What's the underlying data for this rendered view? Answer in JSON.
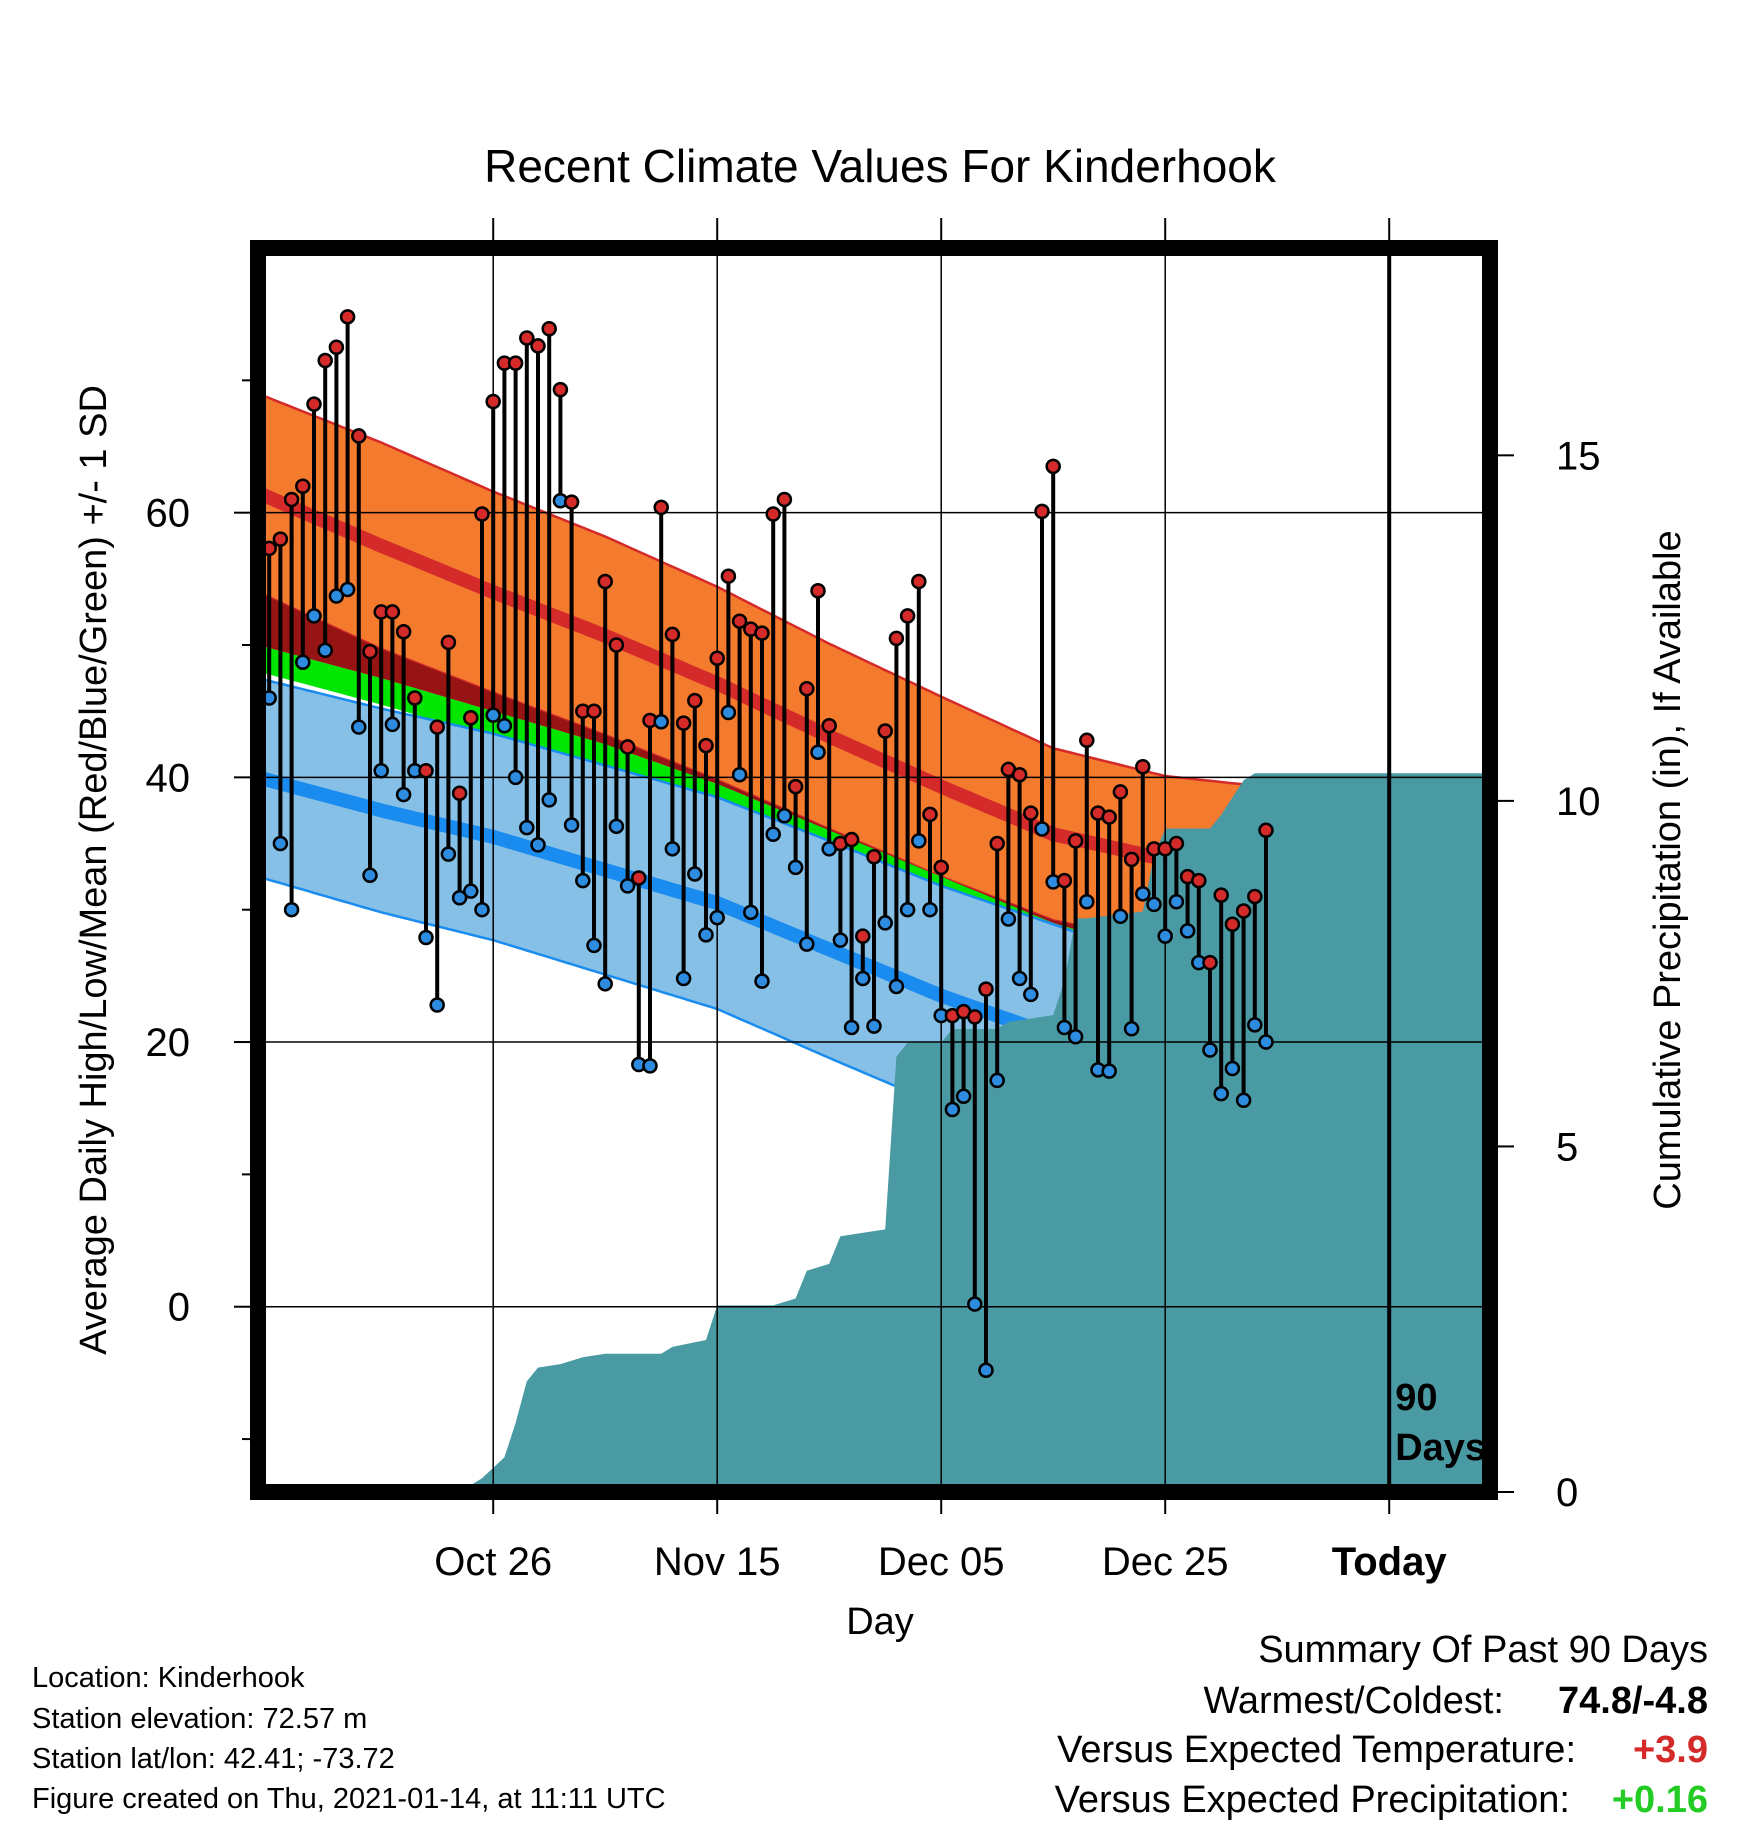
{
  "chart_data": {
    "type": "line",
    "title": "Recent Climate Values For Kinderhook",
    "xlabel": "Day",
    "ylabel_left": "Average Daily High/Low/Mean (Red/Blue/Green) +/- 1 SD",
    "ylabel_right": "Cumulative Precipitation (in), If Available",
    "x_range_days": [
      -101,
      9
    ],
    "y_range": [
      -14,
      80
    ],
    "y_ticks": [
      0,
      20,
      40,
      60
    ],
    "y_ticks_minor": [
      -10,
      10,
      30,
      50,
      70
    ],
    "precip_range": [
      0,
      18
    ],
    "precip_ticks": [
      0,
      5,
      10,
      15
    ],
    "x_ticks": [
      {
        "day": -80,
        "label": "Oct 26"
      },
      {
        "day": -60,
        "label": "Nov 15"
      },
      {
        "day": -40,
        "label": "Dec 05"
      },
      {
        "day": -20,
        "label": "Dec 25"
      },
      {
        "day": 0,
        "label": "Today"
      }
    ],
    "today_marker_label": [
      "90",
      "Days"
    ],
    "grid": true,
    "colors": {
      "high_band": "#f47a2e",
      "high_mean_line": "#d42a2a",
      "low_band": "#86c0e6",
      "low_mean_line": "#1a8cf0",
      "mean_band": "#00e600",
      "overlap_band": "#961414",
      "precip_fill": "#4a9aa4",
      "high_marker": "#d42a2a",
      "low_marker": "#2d8ce0"
    },
    "normals": {
      "days": [
        -101,
        -90,
        -80,
        -70,
        -60,
        -50,
        -40,
        -30,
        -20,
        -10,
        0,
        9
      ],
      "high_mean": [
        61.5,
        57.5,
        54.0,
        50.7,
        47.1,
        43.1,
        39.3,
        35.7,
        33.8,
        32.8,
        32.5,
        33.3
      ],
      "high_sd": [
        7.5,
        7.8,
        7.6,
        7.5,
        7.3,
        7.0,
        6.8,
        6.5,
        6.3,
        6.4,
        6.4,
        6.5
      ],
      "low_mean": [
        40.0,
        37.5,
        35.5,
        33.0,
        30.5,
        27.0,
        23.5,
        20.5,
        17.5,
        15.5,
        14.5,
        14.5
      ],
      "low_sd": [
        7.5,
        7.7,
        7.8,
        7.9,
        8.0,
        8.2,
        8.3,
        8.4,
        8.4,
        8.4,
        8.3,
        8.2
      ],
      "mean_mean": [
        49.0,
        46.5,
        44.0,
        41.5,
        38.5,
        35.0,
        31.5,
        28.0,
        25.5,
        24.0,
        23.0,
        23.3
      ],
      "mean_sd": [
        1.0,
        1.0,
        1.0,
        1.0,
        1.0,
        1.0,
        1.0,
        1.0,
        1.0,
        1.0,
        1.0,
        1.0
      ]
    },
    "daily_start_day": -100,
    "daily_high": [
      57.3,
      58.0,
      61.0,
      62.0,
      68.2,
      71.5,
      72.5,
      74.8,
      65.8,
      49.5,
      52.5,
      52.5,
      51.0,
      46.0,
      40.5,
      43.8,
      50.2,
      38.8,
      44.5,
      59.9,
      68.4,
      71.3,
      71.3,
      73.2,
      72.6,
      73.9,
      69.3,
      60.8,
      45.0,
      45.0,
      54.8,
      50.0,
      42.3,
      32.4,
      44.3,
      60.4,
      50.8,
      44.1,
      45.8,
      42.4,
      49.0,
      55.2,
      51.8,
      51.2,
      50.9,
      59.9,
      61.0,
      39.3,
      46.7,
      54.1,
      43.9,
      35.0,
      35.3,
      28.0,
      34.0,
      43.5,
      50.5,
      52.2,
      54.8,
      37.2,
      33.2,
      22.0,
      22.3,
      21.9,
      24.0,
      35.0,
      40.6,
      40.2,
      37.3,
      60.1,
      63.5,
      32.2,
      35.2,
      42.8,
      37.3,
      37.0,
      38.9,
      33.8,
      40.8,
      34.6,
      34.6,
      35.0,
      32.5,
      32.2,
      26.0,
      31.1,
      28.9,
      29.9,
      31.0,
      36.0
    ],
    "daily_low": [
      46.0,
      35.0,
      30.0,
      48.7,
      52.2,
      49.6,
      53.7,
      54.2,
      43.8,
      32.6,
      40.5,
      44.0,
      38.7,
      40.5,
      27.9,
      22.8,
      34.2,
      30.9,
      31.4,
      30.0,
      44.7,
      43.9,
      40.0,
      36.2,
      34.9,
      38.3,
      60.9,
      36.4,
      32.2,
      27.3,
      24.4,
      36.3,
      31.8,
      18.3,
      18.2,
      44.2,
      34.6,
      24.8,
      32.7,
      28.1,
      29.4,
      44.9,
      40.2,
      29.8,
      24.6,
      35.7,
      37.1,
      33.2,
      27.4,
      41.9,
      34.6,
      27.7,
      21.1,
      24.8,
      21.2,
      29.0,
      24.2,
      30.0,
      35.2,
      30.0,
      22.0,
      14.9,
      15.9,
      0.2,
      -4.8,
      17.1,
      29.3,
      24.8,
      23.6,
      36.1,
      32.1,
      21.1,
      20.4,
      30.6,
      17.9,
      17.8,
      29.5,
      21.0,
      31.2,
      30.4,
      28.0,
      30.6,
      28.4,
      26.0,
      19.4,
      16.1,
      18.0,
      15.6,
      21.3,
      20.0
    ],
    "cumulative_precip": [
      {
        "day": -101,
        "value": 0.0
      },
      {
        "day": -83,
        "value": 0.0
      },
      {
        "day": -81,
        "value": 0.2
      },
      {
        "day": -79,
        "value": 0.5
      },
      {
        "day": -78,
        "value": 1.0
      },
      {
        "day": -77,
        "value": 1.6
      },
      {
        "day": -76,
        "value": 1.8
      },
      {
        "day": -74,
        "value": 1.85
      },
      {
        "day": -72,
        "value": 1.95
      },
      {
        "day": -70,
        "value": 2.0
      },
      {
        "day": -65,
        "value": 2.0
      },
      {
        "day": -64,
        "value": 2.1
      },
      {
        "day": -61,
        "value": 2.2
      },
      {
        "day": -60,
        "value": 2.7
      },
      {
        "day": -55,
        "value": 2.7
      },
      {
        "day": -53,
        "value": 2.8
      },
      {
        "day": -52,
        "value": 3.2
      },
      {
        "day": -50,
        "value": 3.3
      },
      {
        "day": -49,
        "value": 3.7
      },
      {
        "day": -45,
        "value": 3.8
      },
      {
        "day": -44,
        "value": 6.3
      },
      {
        "day": -43,
        "value": 6.5
      },
      {
        "day": -40,
        "value": 6.5
      },
      {
        "day": -39,
        "value": 6.7
      },
      {
        "day": -35,
        "value": 6.7
      },
      {
        "day": -34,
        "value": 6.8
      },
      {
        "day": -30,
        "value": 6.9
      },
      {
        "day": -29,
        "value": 7.4
      },
      {
        "day": -28,
        "value": 8.3
      },
      {
        "day": -27,
        "value": 8.3
      },
      {
        "day": -22,
        "value": 8.4
      },
      {
        "day": -21,
        "value": 9.2
      },
      {
        "day": -20,
        "value": 9.6
      },
      {
        "day": -16,
        "value": 9.6
      },
      {
        "day": -15,
        "value": 9.8
      },
      {
        "day": -13,
        "value": 10.3
      },
      {
        "day": -12,
        "value": 10.4
      },
      {
        "day": 9,
        "value": 10.4
      }
    ],
    "precip_end_day": 9
  },
  "footer": {
    "location": "Location: Kinderhook",
    "elevation": "Station elevation: 72.57 m",
    "latlon": "Station lat/lon: 42.41; -73.72",
    "created": "Figure created on Thu, 2021-01-14, at 11:11 UTC"
  },
  "summary": {
    "heading": "Summary Of Past 90 Days",
    "warmest_coldest_label": "Warmest/Coldest:",
    "warmest_coldest_value": "74.8/-4.8",
    "temp_label": "Versus Expected Temperature:",
    "temp_value": "+3.9",
    "temp_color": "#d42a2a",
    "precip_label": "Versus Expected Precipitation:",
    "precip_value": "+0.16",
    "precip_color": "#22cc22"
  }
}
